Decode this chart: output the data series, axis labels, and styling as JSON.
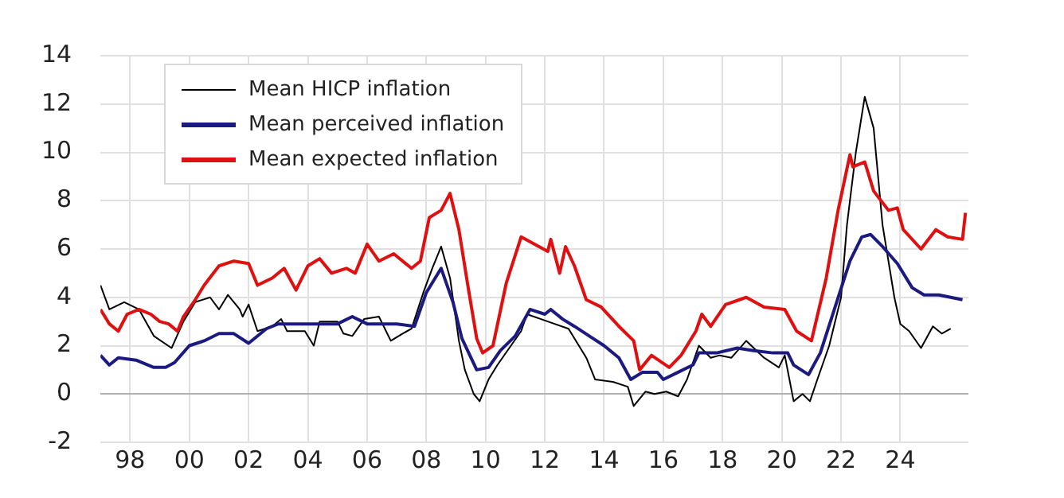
{
  "chart_data": {
    "type": "line",
    "xlim": [
      1997,
      2026.3
    ],
    "ylim": [
      -2,
      14
    ],
    "xticks": [
      {
        "value": 1998,
        "label": "98"
      },
      {
        "value": 2000,
        "label": "00"
      },
      {
        "value": 2002,
        "label": "02"
      },
      {
        "value": 2004,
        "label": "04"
      },
      {
        "value": 2006,
        "label": "06"
      },
      {
        "value": 2008,
        "label": "08"
      },
      {
        "value": 2010,
        "label": "10"
      },
      {
        "value": 2012,
        "label": "12"
      },
      {
        "value": 2014,
        "label": "14"
      },
      {
        "value": 2016,
        "label": "16"
      },
      {
        "value": 2018,
        "label": "18"
      },
      {
        "value": 2020,
        "label": "20"
      },
      {
        "value": 2022,
        "label": "22"
      },
      {
        "value": 2024,
        "label": "24"
      }
    ],
    "yticks": [
      -2,
      0,
      2,
      4,
      6,
      8,
      10,
      12,
      14
    ],
    "grid": true,
    "legend": "top left",
    "marker": "none",
    "line_style": "solid",
    "series": [
      {
        "name": "Mean HICP inflation",
        "color": "#000000",
        "x": [
          1997.0,
          1997.3,
          1997.8,
          1998.3,
          1998.8,
          1999.4,
          1999.8,
          2000.2,
          2000.7,
          2001.0,
          2001.3,
          2001.7,
          2001.8,
          2002.0,
          2002.3,
          2002.8,
          2003.1,
          2003.3,
          2003.9,
          2004.2,
          2004.4,
          2005.0,
          2005.2,
          2005.5,
          2005.9,
          2006.4,
          2006.8,
          2007.2,
          2007.5,
          2007.9,
          2008.2,
          2008.5,
          2008.8,
          2009.1,
          2009.3,
          2009.6,
          2009.8,
          2010.1,
          2010.4,
          2011.2,
          2011.4,
          2012.1,
          2012.8,
          2013.4,
          2013.7,
          2014.3,
          2014.8,
          2015.0,
          2015.4,
          2015.7,
          2016.1,
          2016.5,
          2016.8,
          2017.2,
          2017.6,
          2017.9,
          2018.3,
          2018.8,
          2019.4,
          2019.9,
          2020.1,
          2020.4,
          2020.7,
          2020.95,
          2021.2,
          2021.6,
          2022.0,
          2022.2,
          2022.5,
          2022.8,
          2023.1,
          2023.4,
          2023.8,
          2024.0,
          2024.3,
          2024.7,
          2025.1,
          2025.4,
          2025.7
        ],
        "values": [
          4.5,
          3.5,
          3.8,
          3.5,
          2.4,
          1.9,
          3.0,
          3.8,
          4.0,
          3.5,
          4.1,
          3.5,
          3.2,
          3.7,
          2.6,
          2.8,
          3.1,
          2.6,
          2.6,
          2.0,
          3.0,
          3.0,
          2.5,
          2.4,
          3.1,
          3.2,
          2.2,
          2.5,
          2.7,
          4.2,
          5.2,
          6.1,
          4.8,
          2.2,
          1.0,
          0.0,
          -0.3,
          0.6,
          1.2,
          2.6,
          3.3,
          3.0,
          2.7,
          1.5,
          0.6,
          0.5,
          0.3,
          -0.5,
          0.1,
          0.0,
          0.1,
          -0.1,
          0.6,
          2.0,
          1.5,
          1.6,
          1.5,
          2.2,
          1.5,
          1.1,
          1.6,
          -0.3,
          0.0,
          -0.3,
          0.6,
          2.0,
          4.0,
          7.0,
          10.0,
          12.3,
          11.0,
          7.0,
          4.0,
          2.9,
          2.6,
          1.9,
          2.8,
          2.5,
          2.7
        ]
      },
      {
        "name": "Mean perceived inflation",
        "color": "#1a1a80",
        "x": [
          1997.0,
          1997.3,
          1997.6,
          1998.2,
          1998.8,
          1999.2,
          1999.5,
          2000.0,
          2000.5,
          2001.0,
          2001.5,
          2002.0,
          2002.6,
          2003.0,
          2004.0,
          2005.0,
          2005.5,
          2006.0,
          2007.0,
          2007.6,
          2008.0,
          2008.5,
          2008.9,
          2009.2,
          2009.7,
          2010.1,
          2010.5,
          2011.0,
          2011.5,
          2012.0,
          2012.2,
          2012.6,
          2013.0,
          2013.5,
          2014.0,
          2014.5,
          2014.9,
          2015.3,
          2015.8,
          2016.0,
          2016.5,
          2017.0,
          2017.2,
          2017.8,
          2018.5,
          2019.0,
          2019.7,
          2020.2,
          2020.4,
          2020.9,
          2021.3,
          2021.8,
          2022.3,
          2022.7,
          2023.0,
          2023.4,
          2023.9,
          2024.4,
          2024.8,
          2025.3,
          2026.1
        ],
        "values": [
          1.6,
          1.2,
          1.5,
          1.4,
          1.1,
          1.1,
          1.3,
          2.0,
          2.2,
          2.5,
          2.5,
          2.1,
          2.7,
          2.9,
          2.9,
          2.9,
          3.2,
          2.9,
          2.9,
          2.8,
          4.2,
          5.2,
          3.8,
          2.3,
          1.0,
          1.1,
          1.8,
          2.4,
          3.5,
          3.3,
          3.5,
          3.1,
          2.8,
          2.4,
          2.0,
          1.5,
          0.6,
          0.9,
          0.9,
          0.6,
          0.9,
          1.2,
          1.7,
          1.7,
          1.9,
          1.8,
          1.7,
          1.7,
          1.2,
          0.8,
          1.7,
          3.6,
          5.5,
          6.5,
          6.6,
          6.1,
          5.4,
          4.4,
          4.1,
          4.1,
          3.9
        ]
      },
      {
        "name": "Mean expected inflation",
        "color": "#e01010",
        "x": [
          1997.0,
          1997.3,
          1997.6,
          1997.9,
          1998.3,
          1998.7,
          1999.0,
          1999.3,
          1999.6,
          1999.8,
          2000.2,
          2000.5,
          2001.0,
          2001.5,
          2002.0,
          2002.3,
          2002.8,
          2003.2,
          2003.6,
          2004.0,
          2004.4,
          2004.8,
          2005.3,
          2005.6,
          2006.0,
          2006.4,
          2006.9,
          2007.5,
          2007.8,
          2008.1,
          2008.5,
          2008.8,
          2009.1,
          2009.4,
          2009.7,
          2009.9,
          2010.25,
          2010.7,
          2011.2,
          2012.1,
          2012.2,
          2012.5,
          2012.7,
          2013.0,
          2013.4,
          2013.9,
          2014.5,
          2015.0,
          2015.2,
          2015.6,
          2016.2,
          2016.6,
          2017.1,
          2017.3,
          2017.6,
          2018.1,
          2018.8,
          2019.4,
          2020.1,
          2020.5,
          2021.0,
          2021.5,
          2021.9,
          2022.3,
          2022.4,
          2022.8,
          2023.1,
          2023.6,
          2023.9,
          2024.1,
          2024.7,
          2025.2,
          2025.6,
          2026.1,
          2026.2
        ],
        "values": [
          3.5,
          2.9,
          2.6,
          3.3,
          3.5,
          3.3,
          3.0,
          2.9,
          2.6,
          3.2,
          3.9,
          4.5,
          5.3,
          5.5,
          5.4,
          4.5,
          4.8,
          5.2,
          4.3,
          5.3,
          5.6,
          5.0,
          5.2,
          5.0,
          6.2,
          5.5,
          5.8,
          5.2,
          5.5,
          7.3,
          7.6,
          8.3,
          6.8,
          4.5,
          2.3,
          1.7,
          2.0,
          4.6,
          6.5,
          5.9,
          6.4,
          5.0,
          6.1,
          5.3,
          3.9,
          3.6,
          2.8,
          2.2,
          1.0,
          1.6,
          1.1,
          1.6,
          2.6,
          3.3,
          2.8,
          3.7,
          4.0,
          3.6,
          3.5,
          2.6,
          2.2,
          4.8,
          7.6,
          9.9,
          9.4,
          9.6,
          8.4,
          7.6,
          7.7,
          6.8,
          6.0,
          6.8,
          6.5,
          6.4,
          7.5
        ]
      }
    ]
  }
}
